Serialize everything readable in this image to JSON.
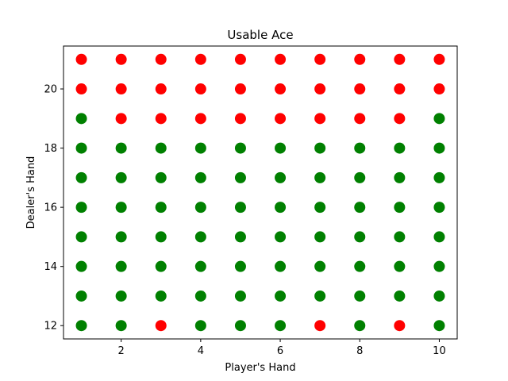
{
  "chart_data": {
    "type": "scatter",
    "title": "Usable Ace",
    "xlabel": "Player's Hand",
    "ylabel": "Dealer's Hand",
    "xlim": [
      0.55,
      10.45
    ],
    "ylim": [
      11.55,
      21.45
    ],
    "xticks": [
      2,
      4,
      6,
      8,
      10
    ],
    "yticks": [
      12,
      14,
      16,
      18,
      20
    ],
    "grid": false,
    "colors": {
      "red": "#ff0000",
      "green": "#008000"
    },
    "x": [
      1,
      2,
      3,
      4,
      5,
      6,
      7,
      8,
      9,
      10
    ],
    "y": [
      12,
      13,
      14,
      15,
      16,
      17,
      18,
      19,
      20,
      21
    ],
    "red_points": [
      {
        "x": 3,
        "y": 12
      },
      {
        "x": 7,
        "y": 12
      },
      {
        "x": 9,
        "y": 12
      },
      {
        "x": 2,
        "y": 19
      },
      {
        "x": 3,
        "y": 19
      },
      {
        "x": 4,
        "y": 19
      },
      {
        "x": 5,
        "y": 19
      },
      {
        "x": 6,
        "y": 19
      },
      {
        "x": 7,
        "y": 19
      },
      {
        "x": 8,
        "y": 19
      },
      {
        "x": 9,
        "y": 19
      },
      {
        "x": 1,
        "y": 20
      },
      {
        "x": 2,
        "y": 20
      },
      {
        "x": 3,
        "y": 20
      },
      {
        "x": 4,
        "y": 20
      },
      {
        "x": 5,
        "y": 20
      },
      {
        "x": 6,
        "y": 20
      },
      {
        "x": 7,
        "y": 20
      },
      {
        "x": 8,
        "y": 20
      },
      {
        "x": 9,
        "y": 20
      },
      {
        "x": 10,
        "y": 20
      },
      {
        "x": 1,
        "y": 21
      },
      {
        "x": 2,
        "y": 21
      },
      {
        "x": 3,
        "y": 21
      },
      {
        "x": 4,
        "y": 21
      },
      {
        "x": 5,
        "y": 21
      },
      {
        "x": 6,
        "y": 21
      },
      {
        "x": 7,
        "y": 21
      },
      {
        "x": 8,
        "y": 21
      },
      {
        "x": 9,
        "y": 21
      },
      {
        "x": 10,
        "y": 21
      }
    ]
  }
}
